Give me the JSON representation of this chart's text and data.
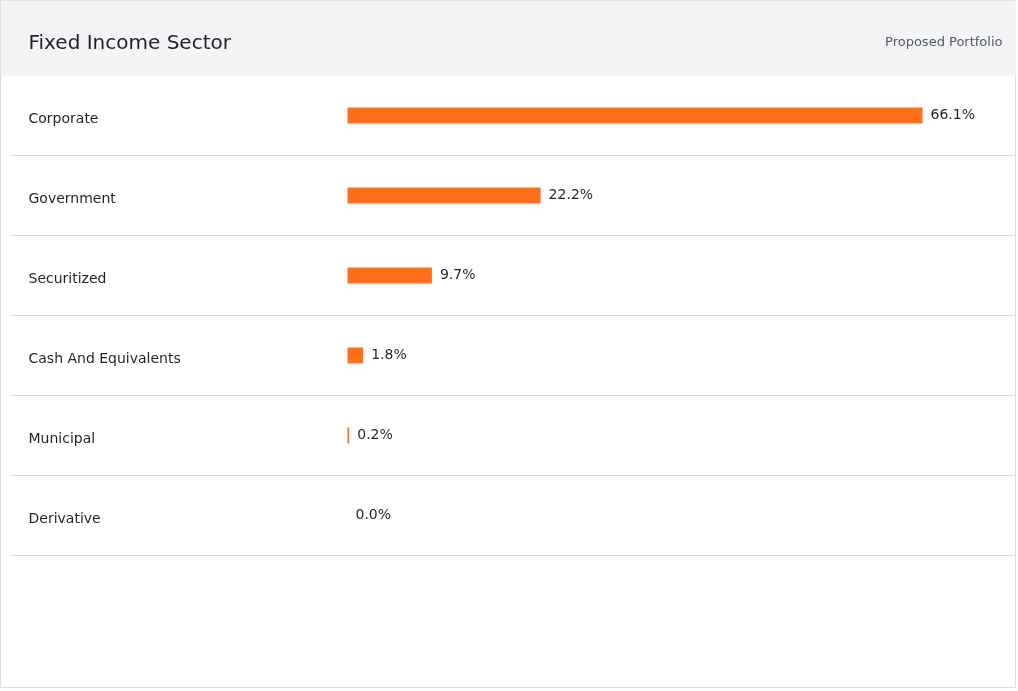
{
  "chart_data": {
    "type": "bar",
    "orientation": "horizontal",
    "title": "Fixed Income Sector",
    "subtitle": "Proposed Portfolio",
    "categories": [
      "Corporate",
      "Government",
      "Securitized",
      "Cash And Equivalents",
      "Municipal",
      "Derivative"
    ],
    "values": [
      66.1,
      22.2,
      9.7,
      1.8,
      0.2,
      0.0
    ],
    "value_labels": [
      "66.1%",
      "22.2%",
      "9.7%",
      "1.8%",
      "0.2%",
      "0.0%"
    ],
    "color": "#ff6f1a",
    "grid": false
  }
}
